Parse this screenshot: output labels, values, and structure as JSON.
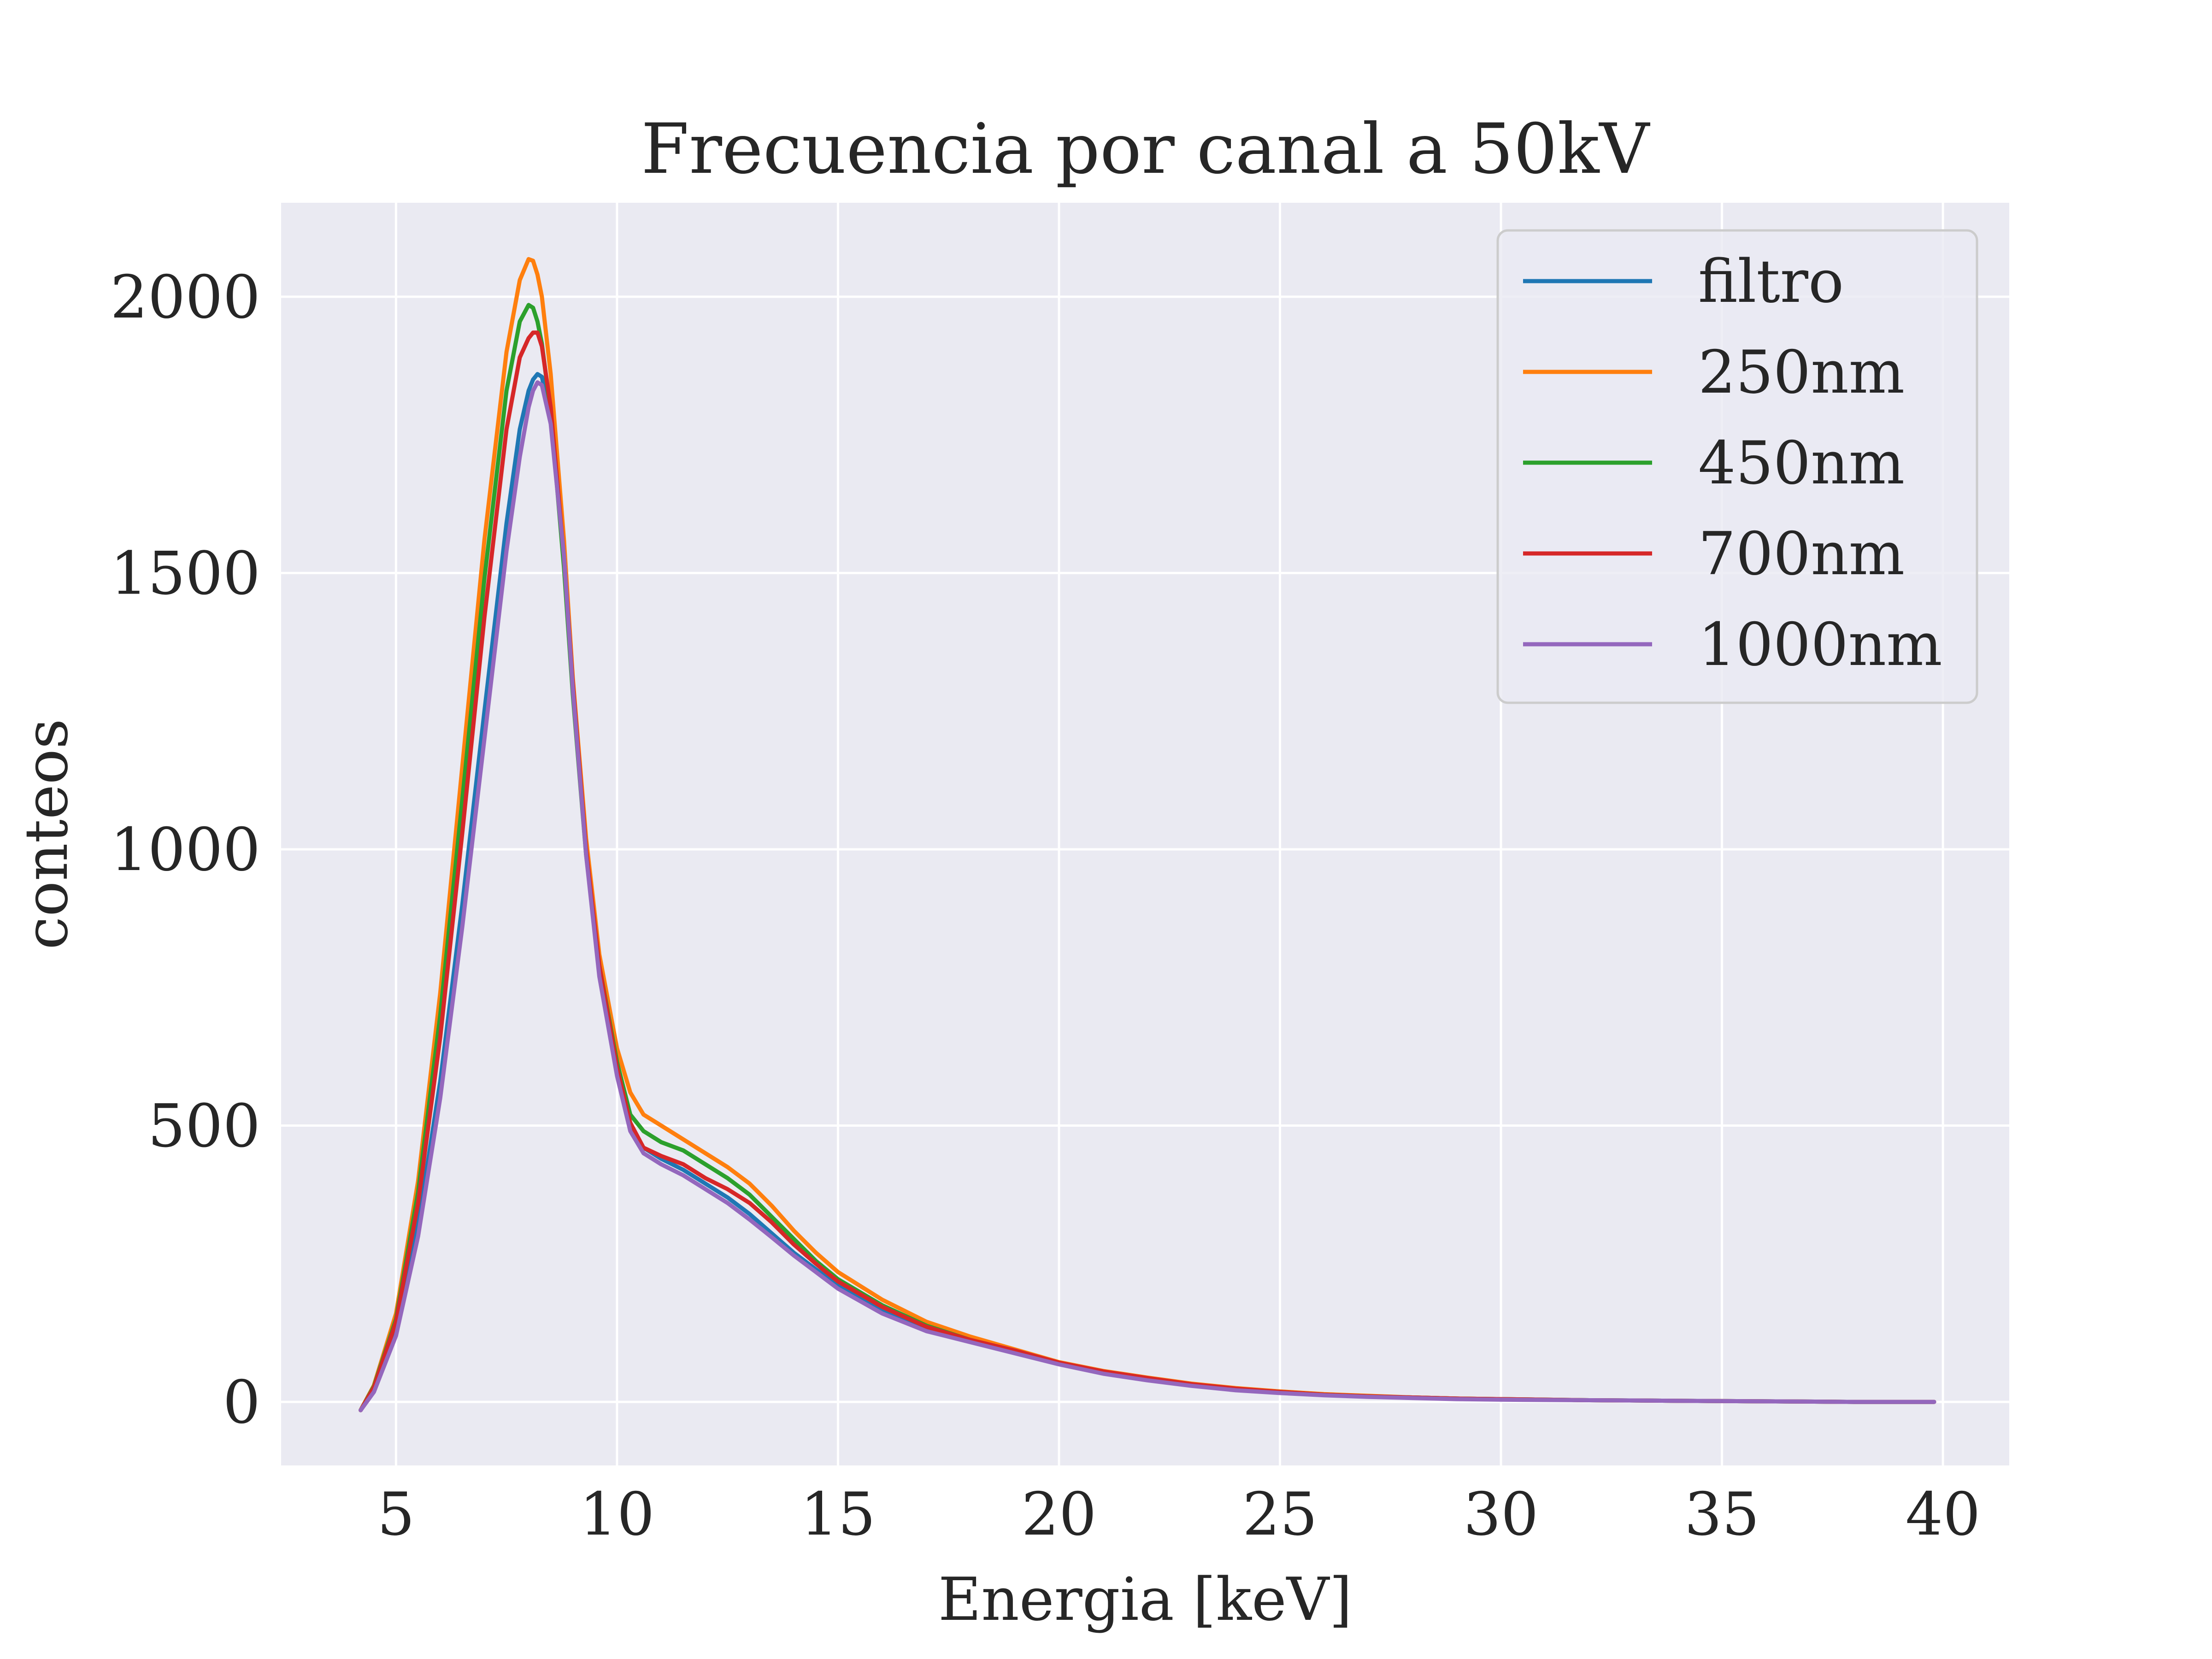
{
  "chart_data": {
    "type": "line",
    "title": "Frecuencia por canal a 50kV",
    "xlabel": "Energia [keV]",
    "ylabel": "conteos",
    "xlim": [
      2.4,
      41.5
    ],
    "ylim": [
      -115,
      2170
    ],
    "xticks": [
      5,
      10,
      15,
      20,
      25,
      30,
      35,
      40
    ],
    "yticks": [
      0,
      500,
      1000,
      1500,
      2000
    ],
    "grid": true,
    "legend": "top-right",
    "x": [
      4.2,
      4.5,
      5.0,
      5.5,
      6.0,
      6.5,
      7.0,
      7.5,
      7.8,
      8.0,
      8.1,
      8.2,
      8.3,
      8.5,
      8.8,
      9.0,
      9.3,
      9.6,
      10.0,
      10.3,
      10.6,
      11.0,
      11.5,
      12.0,
      12.5,
      13.0,
      13.5,
      14.0,
      14.5,
      15.0,
      16.0,
      17.0,
      18.0,
      19.0,
      20.0,
      21.0,
      22.0,
      23.0,
      24.0,
      25.0,
      26.0,
      27.0,
      28.0,
      29.0,
      30.0,
      32.0,
      34.0,
      36.0,
      38.0,
      39.8
    ],
    "series": [
      {
        "name": "filtro",
        "color": "#1f77b4",
        "values": [
          -15,
          20,
          130,
          320,
          580,
          900,
          1250,
          1590,
          1760,
          1830,
          1850,
          1860,
          1855,
          1780,
          1540,
          1300,
          1000,
          780,
          600,
          500,
          460,
          440,
          420,
          395,
          370,
          340,
          305,
          270,
          240,
          210,
          165,
          130,
          110,
          90,
          70,
          52,
          40,
          30,
          22,
          17,
          13,
          10,
          8,
          6,
          5,
          3,
          2,
          1,
          0,
          0
        ]
      },
      {
        "name": "250nm",
        "color": "#ff7f0e",
        "values": [
          -15,
          30,
          160,
          400,
          740,
          1150,
          1560,
          1900,
          2030,
          2068,
          2065,
          2040,
          2000,
          1860,
          1560,
          1310,
          1020,
          810,
          640,
          560,
          520,
          500,
          475,
          450,
          425,
          395,
          355,
          310,
          270,
          235,
          185,
          145,
          118,
          95,
          72,
          56,
          44,
          33,
          25,
          19,
          14,
          11,
          8,
          6,
          5,
          3,
          2,
          1,
          0,
          0
        ]
      },
      {
        "name": "450nm",
        "color": "#2ca02c",
        "values": [
          -15,
          28,
          150,
          380,
          700,
          1090,
          1490,
          1830,
          1955,
          1985,
          1980,
          1955,
          1915,
          1790,
          1510,
          1280,
          990,
          790,
          615,
          520,
          490,
          470,
          455,
          430,
          405,
          375,
          335,
          295,
          255,
          222,
          175,
          138,
          112,
          92,
          70,
          54,
          42,
          31,
          23,
          18,
          13,
          10,
          8,
          6,
          5,
          3,
          2,
          1,
          0,
          0
        ]
      },
      {
        "name": "700nm",
        "color": "#d62728",
        "values": [
          -15,
          26,
          145,
          360,
          660,
          1030,
          1420,
          1760,
          1890,
          1925,
          1935,
          1935,
          1910,
          1800,
          1530,
          1300,
          1000,
          790,
          605,
          505,
          460,
          445,
          430,
          405,
          385,
          360,
          325,
          285,
          250,
          218,
          172,
          136,
          112,
          93,
          71,
          55,
          43,
          32,
          24,
          18,
          13,
          10,
          8,
          6,
          5,
          3,
          2,
          1,
          0,
          0
        ]
      },
      {
        "name": "1000nm",
        "color": "#9467bd",
        "values": [
          -15,
          18,
          120,
          300,
          550,
          860,
          1200,
          1540,
          1710,
          1800,
          1830,
          1845,
          1840,
          1770,
          1530,
          1290,
          990,
          770,
          590,
          490,
          450,
          430,
          410,
          385,
          360,
          330,
          298,
          265,
          235,
          205,
          160,
          128,
          108,
          88,
          68,
          51,
          39,
          29,
          21,
          16,
          12,
          9,
          7,
          5,
          4,
          3,
          2,
          1,
          0,
          0
        ]
      }
    ]
  }
}
